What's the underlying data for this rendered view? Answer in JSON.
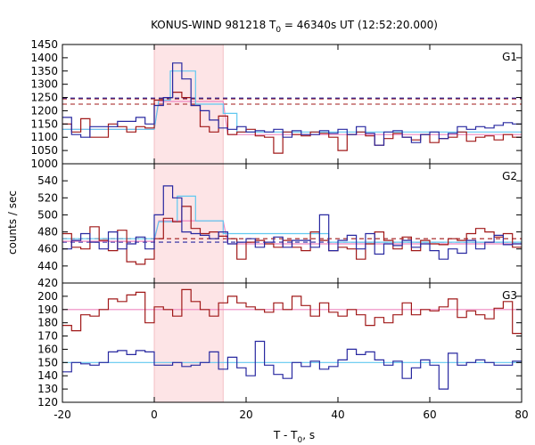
{
  "figure": {
    "title": "KONUS-WIND 981218 T",
    "title_sub": "0",
    "title_rest": " = 46340s UT (12:52:20.000)",
    "xlabel": "T - T",
    "xlabel_sub": "0",
    "xlabel_rest": ", s",
    "ylabel": "counts / sec"
  },
  "chart_data": [
    {
      "type": "line",
      "panel": "G1",
      "label": "G1",
      "xlim": [
        -20,
        80
      ],
      "ylim": [
        1000,
        1450
      ],
      "yticks": [
        1000,
        1050,
        1100,
        1150,
        1200,
        1250,
        1300,
        1350,
        1400,
        1450
      ],
      "xticks": [
        -20,
        0,
        20,
        40,
        60,
        80
      ],
      "grid": false,
      "highlight_interval": [
        0,
        15
      ],
      "hlines": [
        {
          "color": "#a01818",
          "style": "dashed",
          "y": 1245
        },
        {
          "color": "#a01818",
          "style": "dashed",
          "y": 1225
        },
        {
          "color": "#2828a0",
          "style": "dashed",
          "y": 1248
        }
      ],
      "fits": [
        {
          "color": "#ee88c0",
          "points": [
            [
              -20,
              1130
            ],
            [
              0,
              1130
            ],
            [
              1,
              1235
            ],
            [
              15,
              1235
            ],
            [
              16,
              1110
            ],
            [
              80,
              1110
            ]
          ]
        },
        {
          "color": "#60c8f0",
          "points": [
            [
              -20,
              1130
            ],
            [
              0,
              1130
            ],
            [
              1,
              1240
            ],
            [
              3.5,
              1240
            ],
            [
              3.5,
              1350
            ],
            [
              9,
              1350
            ],
            [
              9,
              1225
            ],
            [
              15,
              1225
            ],
            [
              15,
              1190
            ],
            [
              18,
              1190
            ],
            [
              18,
              1120
            ],
            [
              80,
              1120
            ]
          ]
        }
      ],
      "series": [
        {
          "color": "#a01818",
          "step": 2,
          "x": [
            -20,
            -18,
            -16,
            -14,
            -12,
            -10,
            -8,
            -6,
            -4,
            -2,
            0,
            2,
            4,
            6,
            8,
            10,
            12,
            14,
            16,
            18,
            20,
            22,
            24,
            26,
            28,
            30,
            32,
            34,
            36,
            38,
            40,
            42,
            44,
            46,
            48,
            50,
            52,
            54,
            56,
            58,
            60,
            62,
            64,
            66,
            68,
            70,
            72,
            74,
            76,
            78
          ],
          "y": [
            1150,
            1120,
            1170,
            1100,
            1100,
            1150,
            1140,
            1120,
            1140,
            1135,
            1240,
            1250,
            1270,
            1250,
            1220,
            1140,
            1120,
            1180,
            1110,
            1120,
            1130,
            1105,
            1100,
            1040,
            1120,
            1110,
            1105,
            1120,
            1115,
            1100,
            1050,
            1110,
            1120,
            1105,
            1070,
            1095,
            1115,
            1100,
            1090,
            1110,
            1080,
            1095,
            1100,
            1120,
            1085,
            1100,
            1105,
            1090,
            1110,
            1100
          ]
        },
        {
          "color": "#2828a0",
          "step": 2,
          "x": [
            -20,
            -18,
            -16,
            -14,
            -12,
            -10,
            -8,
            -6,
            -4,
            -2,
            0,
            2,
            4,
            6,
            8,
            10,
            12,
            14,
            16,
            18,
            20,
            22,
            24,
            26,
            28,
            30,
            32,
            34,
            36,
            38,
            40,
            42,
            44,
            46,
            48,
            50,
            52,
            54,
            56,
            58,
            60,
            62,
            64,
            66,
            68,
            70,
            72,
            74,
            76,
            78
          ],
          "y": [
            1175,
            1110,
            1100,
            1140,
            1140,
            1140,
            1160,
            1160,
            1175,
            1150,
            1220,
            1250,
            1380,
            1320,
            1220,
            1200,
            1165,
            1135,
            1130,
            1140,
            1120,
            1125,
            1120,
            1130,
            1100,
            1125,
            1110,
            1110,
            1125,
            1115,
            1130,
            1110,
            1140,
            1115,
            1070,
            1120,
            1125,
            1100,
            1080,
            1110,
            1120,
            1095,
            1115,
            1140,
            1130,
            1140,
            1135,
            1145,
            1155,
            1150
          ]
        }
      ]
    },
    {
      "type": "line",
      "panel": "G2",
      "label": "G2",
      "xlim": [
        -20,
        80
      ],
      "ylim": [
        420,
        560
      ],
      "yticks": [
        420,
        440,
        460,
        480,
        500,
        520,
        540
      ],
      "xticks": [
        -20,
        0,
        20,
        40,
        60,
        80
      ],
      "grid": false,
      "highlight_interval": [
        0,
        15
      ],
      "hlines": [
        {
          "color": "#a01818",
          "style": "dashed",
          "y": 472
        },
        {
          "color": "#2828a0",
          "style": "dashed",
          "y": 468
        }
      ],
      "fits": [
        {
          "color": "#ee88c0",
          "points": [
            [
              -20,
              469
            ],
            [
              0,
              469
            ],
            [
              1,
              493
            ],
            [
              15,
              493
            ],
            [
              16,
              466
            ],
            [
              80,
              466
            ]
          ]
        },
        {
          "color": "#60c8f0",
          "points": [
            [
              -20,
              472
            ],
            [
              0,
              472
            ],
            [
              1,
              492
            ],
            [
              5,
              492
            ],
            [
              5,
              522
            ],
            [
              9,
              522
            ],
            [
              9,
              493
            ],
            [
              15,
              493
            ],
            [
              15,
              478
            ],
            [
              38,
              478
            ],
            [
              38,
              468
            ],
            [
              80,
              468
            ]
          ]
        }
      ],
      "series": [
        {
          "color": "#a01818",
          "step": 2,
          "x": [
            -20,
            -18,
            -16,
            -14,
            -12,
            -10,
            -8,
            -6,
            -4,
            -2,
            0,
            2,
            4,
            6,
            8,
            10,
            12,
            14,
            16,
            18,
            20,
            22,
            24,
            26,
            28,
            30,
            32,
            34,
            36,
            38,
            40,
            42,
            44,
            46,
            48,
            50,
            52,
            54,
            56,
            58,
            60,
            62,
            64,
            66,
            68,
            70,
            72,
            74,
            76,
            78
          ],
          "y": [
            478,
            462,
            460,
            486,
            470,
            458,
            482,
            445,
            442,
            448,
            472,
            496,
            492,
            510,
            484,
            478,
            480,
            475,
            472,
            448,
            468,
            470,
            466,
            462,
            470,
            462,
            458,
            480,
            470,
            458,
            462,
            460,
            448,
            466,
            480,
            470,
            460,
            474,
            458,
            470,
            466,
            465,
            472,
            470,
            478,
            484,
            480,
            474,
            478,
            462
          ]
        },
        {
          "color": "#2828a0",
          "step": 2,
          "x": [
            -20,
            -18,
            -16,
            -14,
            -12,
            -10,
            -8,
            -6,
            -4,
            -2,
            0,
            2,
            4,
            6,
            8,
            10,
            12,
            14,
            16,
            18,
            20,
            22,
            24,
            26,
            28,
            30,
            32,
            34,
            36,
            38,
            40,
            42,
            44,
            46,
            48,
            50,
            52,
            54,
            56,
            58,
            60,
            62,
            64,
            66,
            68,
            70,
            72,
            74,
            76,
            78
          ],
          "y": [
            460,
            470,
            478,
            468,
            460,
            480,
            460,
            466,
            474,
            460,
            500,
            534,
            520,
            480,
            478,
            476,
            472,
            480,
            466,
            468,
            472,
            462,
            468,
            474,
            462,
            470,
            470,
            462,
            500,
            458,
            470,
            476,
            460,
            478,
            454,
            466,
            464,
            470,
            462,
            466,
            458,
            448,
            460,
            455,
            470,
            460,
            468,
            476,
            465,
            466
          ]
        }
      ]
    },
    {
      "type": "line",
      "panel": "G3",
      "label": "G3",
      "xlim": [
        -20,
        80
      ],
      "ylim": [
        120,
        210
      ],
      "yticks": [
        120,
        130,
        140,
        150,
        160,
        170,
        180,
        190,
        200
      ],
      "xticks": [
        -20,
        0,
        20,
        40,
        60,
        80
      ],
      "grid": false,
      "highlight_interval": [
        0,
        15
      ],
      "hlines": [],
      "fits": [
        {
          "color": "#ee88c0",
          "points": [
            [
              -20,
              190
            ],
            [
              80,
              190
            ]
          ]
        },
        {
          "color": "#60c8f0",
          "points": [
            [
              -20,
              150
            ],
            [
              80,
              150
            ]
          ]
        }
      ],
      "series": [
        {
          "color": "#a01818",
          "step": 2,
          "x": [
            -20,
            -18,
            -16,
            -14,
            -12,
            -10,
            -8,
            -6,
            -4,
            -2,
            0,
            2,
            4,
            6,
            8,
            10,
            12,
            14,
            16,
            18,
            20,
            22,
            24,
            26,
            28,
            30,
            32,
            34,
            36,
            38,
            40,
            42,
            44,
            46,
            48,
            50,
            52,
            54,
            56,
            58,
            60,
            62,
            64,
            66,
            68,
            70,
            72,
            74,
            76,
            78
          ],
          "y": [
            178,
            174,
            186,
            185,
            190,
            198,
            196,
            201,
            203,
            180,
            192,
            190,
            185,
            205,
            196,
            190,
            185,
            195,
            200,
            195,
            192,
            190,
            188,
            195,
            190,
            200,
            193,
            185,
            195,
            188,
            185,
            190,
            186,
            178,
            184,
            180,
            186,
            195,
            186,
            190,
            189,
            192,
            198,
            184,
            189,
            186,
            183,
            191,
            196,
            172
          ]
        },
        {
          "color": "#2828a0",
          "step": 2,
          "x": [
            -20,
            -18,
            -16,
            -14,
            -12,
            -10,
            -8,
            -6,
            -4,
            -2,
            0,
            2,
            4,
            6,
            8,
            10,
            12,
            14,
            16,
            18,
            20,
            22,
            24,
            26,
            28,
            30,
            32,
            34,
            36,
            38,
            40,
            42,
            44,
            46,
            48,
            50,
            52,
            54,
            56,
            58,
            60,
            62,
            64,
            66,
            68,
            70,
            72,
            74,
            76,
            78
          ],
          "y": [
            143,
            150,
            149,
            148,
            150,
            158,
            159,
            156,
            159,
            158,
            148,
            148,
            150,
            147,
            148,
            150,
            158,
            145,
            154,
            146,
            140,
            166,
            148,
            141,
            138,
            150,
            147,
            151,
            145,
            147,
            152,
            160,
            156,
            158,
            152,
            148,
            151,
            138,
            146,
            152,
            148,
            130,
            157,
            148,
            150,
            152,
            150,
            148,
            148,
            151
          ]
        }
      ]
    }
  ]
}
